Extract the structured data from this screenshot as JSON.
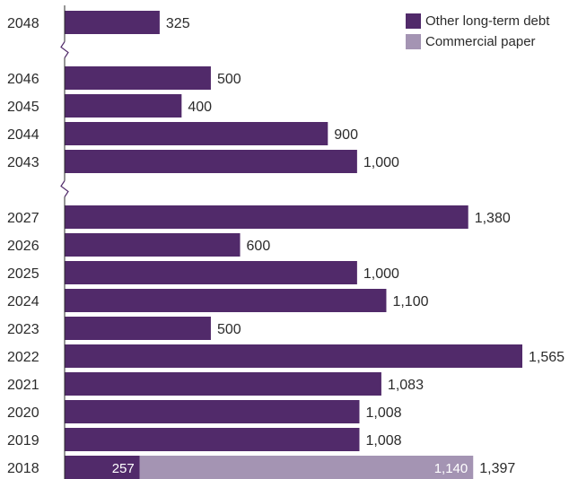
{
  "colors": {
    "other_long_term_debt": "#512a6a",
    "commercial_paper": "#a494b3",
    "axis": "#2b2b2b",
    "break_mark": "#512a6a"
  },
  "legend": {
    "items": [
      {
        "label": "Other long-term debt",
        "color": "#512a6a"
      },
      {
        "label": "Commercial paper",
        "color": "#a494b3"
      }
    ]
  },
  "chart_data": {
    "type": "bar",
    "orientation": "horizontal",
    "stacked": true,
    "axis_breaks_after": [
      "2048",
      "2043"
    ],
    "categories": [
      "2048",
      "2046",
      "2045",
      "2044",
      "2043",
      "2027",
      "2026",
      "2025",
      "2024",
      "2023",
      "2022",
      "2021",
      "2020",
      "2019",
      "2018"
    ],
    "series": [
      {
        "name": "Other long-term debt",
        "values": [
          325,
          500,
          400,
          900,
          1000,
          1380,
          600,
          1000,
          1100,
          500,
          1565,
          1083,
          1008,
          1008,
          257
        ]
      },
      {
        "name": "Commercial paper",
        "values": [
          0,
          0,
          0,
          0,
          0,
          0,
          0,
          0,
          0,
          0,
          0,
          0,
          0,
          0,
          1140
        ]
      }
    ],
    "total_labels": [
      "325",
      "500",
      "400",
      "900",
      "1,000",
      "1,380",
      "600",
      "1,000",
      "1,100",
      "500",
      "1,565",
      "1,083",
      "1,008",
      "1,008",
      "1,397"
    ],
    "segment_labels": {
      "2018": [
        "257",
        "1,140"
      ]
    },
    "xlim": [
      0,
      1565
    ],
    "legend_position": "top-right"
  }
}
